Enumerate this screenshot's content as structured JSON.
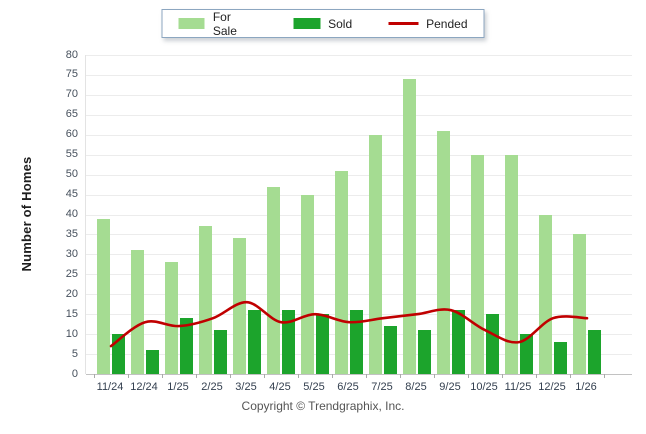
{
  "y_axis": {
    "title": "Number of Homes"
  },
  "footer": {
    "copyright": "Copyright © Trendgraphix, Inc."
  },
  "colors": {
    "for_sale": "#A5DC92",
    "sold": "#1CA42C",
    "pended": "#C00000",
    "grid": "#ECECEC",
    "legend_border": "#8CA6C0"
  },
  "chart_data": {
    "type": "bar",
    "title": "",
    "xlabel": "",
    "ylabel": "Number of Homes",
    "categories": [
      "11/24",
      "12/24",
      "1/25",
      "2/25",
      "3/25",
      "4/25",
      "5/25",
      "6/25",
      "7/25",
      "8/25",
      "9/25",
      "10/25",
      "11/25",
      "12/25",
      "1/26"
    ],
    "series": [
      {
        "name": "For Sale",
        "render": "bar",
        "color": "#A5DC92",
        "values": [
          39,
          31,
          28,
          37,
          34,
          47,
          45,
          51,
          60,
          74,
          61,
          55,
          55,
          40,
          35
        ]
      },
      {
        "name": "Sold",
        "render": "bar",
        "color": "#1CA42C",
        "values": [
          10,
          6,
          14,
          11,
          16,
          16,
          15,
          16,
          12,
          11,
          16,
          15,
          10,
          8,
          11
        ]
      },
      {
        "name": "Pended",
        "render": "line",
        "color": "#C00000",
        "values": [
          7,
          13,
          12,
          14,
          18,
          13,
          15,
          13,
          14,
          15,
          16,
          11,
          8,
          14,
          14
        ]
      }
    ],
    "ylim": [
      0,
      80
    ],
    "y_step": 5,
    "y_ticks": [
      "0",
      "5",
      "10",
      "15",
      "20",
      "25",
      "30",
      "35",
      "40",
      "45",
      "50",
      "55",
      "60",
      "65",
      "70",
      "75",
      "80"
    ],
    "grid": true,
    "legend_position": "top-center"
  }
}
